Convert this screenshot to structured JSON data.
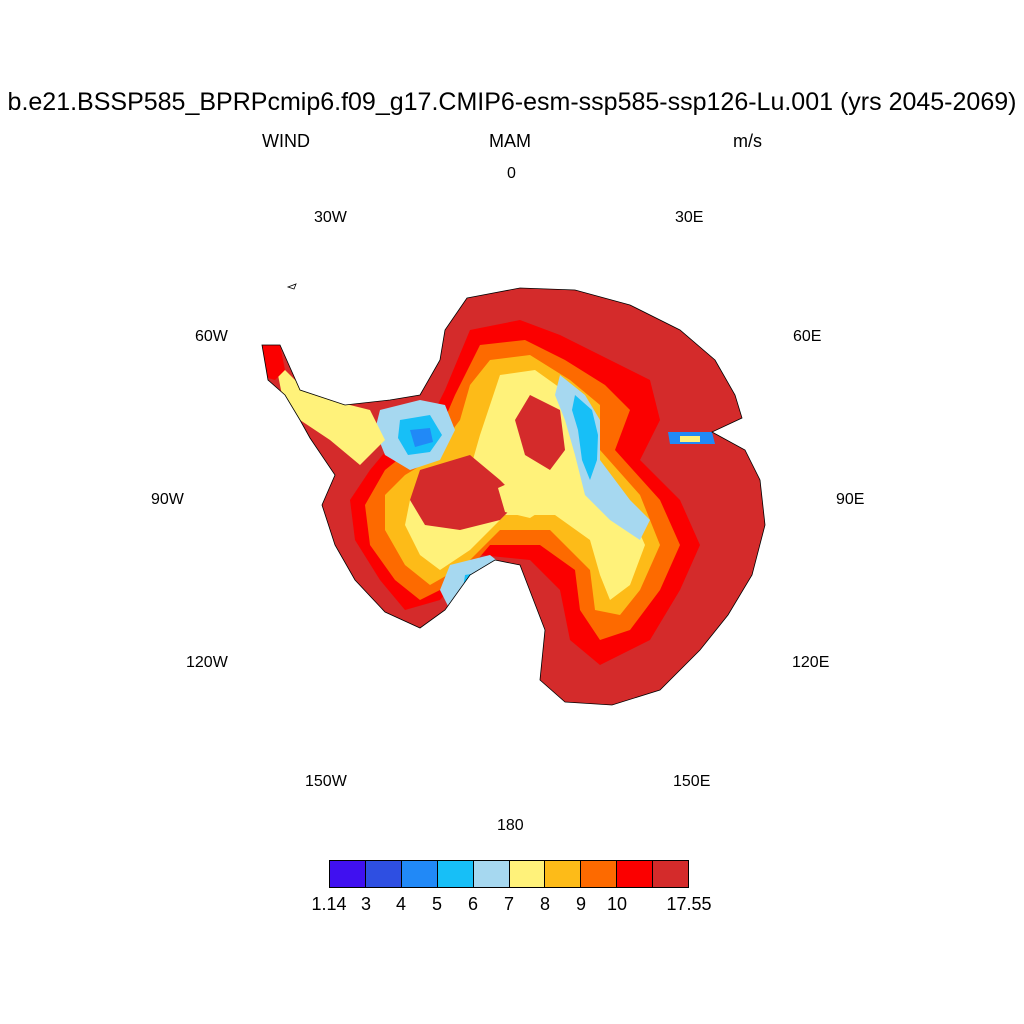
{
  "title": "b.e21.BSSP585_BPRPcmip6.f09_g17.CMIP6-esm-ssp585-ssp126-Lu.001 (yrs 2045-2069)",
  "subtitle": {
    "left": "WIND",
    "center": "MAM",
    "right": "m/s"
  },
  "longitude_labels": [
    "0",
    "30E",
    "60E",
    "90E",
    "120E",
    "150E",
    "180",
    "150W",
    "120W",
    "90W",
    "60W",
    "30W"
  ],
  "colorbar": {
    "colors": [
      "#4010f0",
      "#2e4fe2",
      "#2189f7",
      "#17bff7",
      "#a6d8f0",
      "#fff27a",
      "#fdbb18",
      "#fd6a00",
      "#fb0000",
      "#d42b2b"
    ],
    "labels": [
      "1.14",
      "3",
      "4",
      "5",
      "6",
      "7",
      "8",
      "9",
      "10",
      "17.55"
    ]
  },
  "map": {
    "projection": "south-polar-stereographic",
    "variable": "WIND",
    "units": "m/s",
    "fill_colors": {
      "ocean": "#ffffff",
      "coast": "#d42b2b",
      "ring1": "#fb0000",
      "ring2": "#fd6a00",
      "ring3": "#fdbb18",
      "ring4": "#fff27a",
      "blue_light": "#a6d8f0",
      "blue_mid": "#17bff7",
      "blue_deep": "#2189f7"
    }
  }
}
